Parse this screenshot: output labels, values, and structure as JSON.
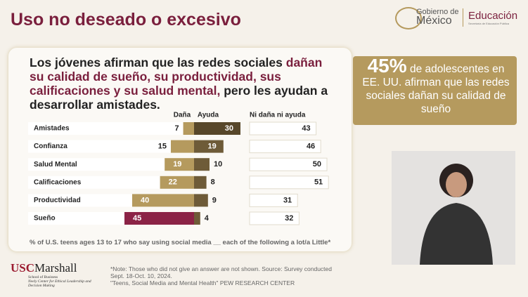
{
  "header": {
    "title": "Uso no deseado o excesivo",
    "gov_line1": "Gobierno de",
    "gov_line2": "México",
    "edu": "Educación",
    "edu_sub": "Secretaría de Educación Pública"
  },
  "card": {
    "lead_1": "Los jóvenes afirman que las redes sociales ",
    "lead_highlight": "dañan su calidad de sueño, su productividad, sus calificaciones y su salud mental,",
    "lead_2": " pero les ayudan a desarrollar amistades.",
    "footnote": "% of U.S. teens ages 13 to 17 who say using social media __ each of the following a lot/a Little*"
  },
  "chart_data": {
    "type": "diverging-bar",
    "categories": [
      "Amistades",
      "Confianza",
      "Salud Mental",
      "Calificaciones",
      "Productividad",
      "Sueño"
    ],
    "series": [
      {
        "name": "Daña",
        "color": "#b59a5e",
        "colors": [
          "#b59a5e",
          "#b59a5e",
          "#b59a5e",
          "#b59a5e",
          "#b59a5e",
          "#8b2346"
        ],
        "values": [
          7,
          15,
          19,
          22,
          40,
          45
        ]
      },
      {
        "name": "Ayuda",
        "color": "#6e5b38",
        "colors": [
          "#57472a",
          "#6e5b38",
          "#6e5b38",
          "#6e5b38",
          "#6e5b38",
          "#6e5b38"
        ],
        "values": [
          30,
          19,
          10,
          8,
          9,
          4
        ]
      },
      {
        "name": "Ni daña ni ayuda",
        "color": "#ffffff",
        "values": [
          43,
          46,
          50,
          51,
          31,
          32
        ]
      }
    ]
  },
  "sidebar": {
    "stat": "45%",
    "text_1": " de adolescentes en EE. UU. afirman que las redes sociales dañan su calidad de sueño"
  },
  "footer": {
    "usc": "USC",
    "marshall": "Marshall",
    "school": "School of Business",
    "center": "Neely Center for Ethical Leadership and Decision Making",
    "note": "*Note: Those who did not give an answer are not shown. Source: Survey conducted Sept. 18-Oct. 10, 2024.",
    "source": "\"Teens, Social Media and Mental Health\" PEW RESEARCH CENTER"
  }
}
